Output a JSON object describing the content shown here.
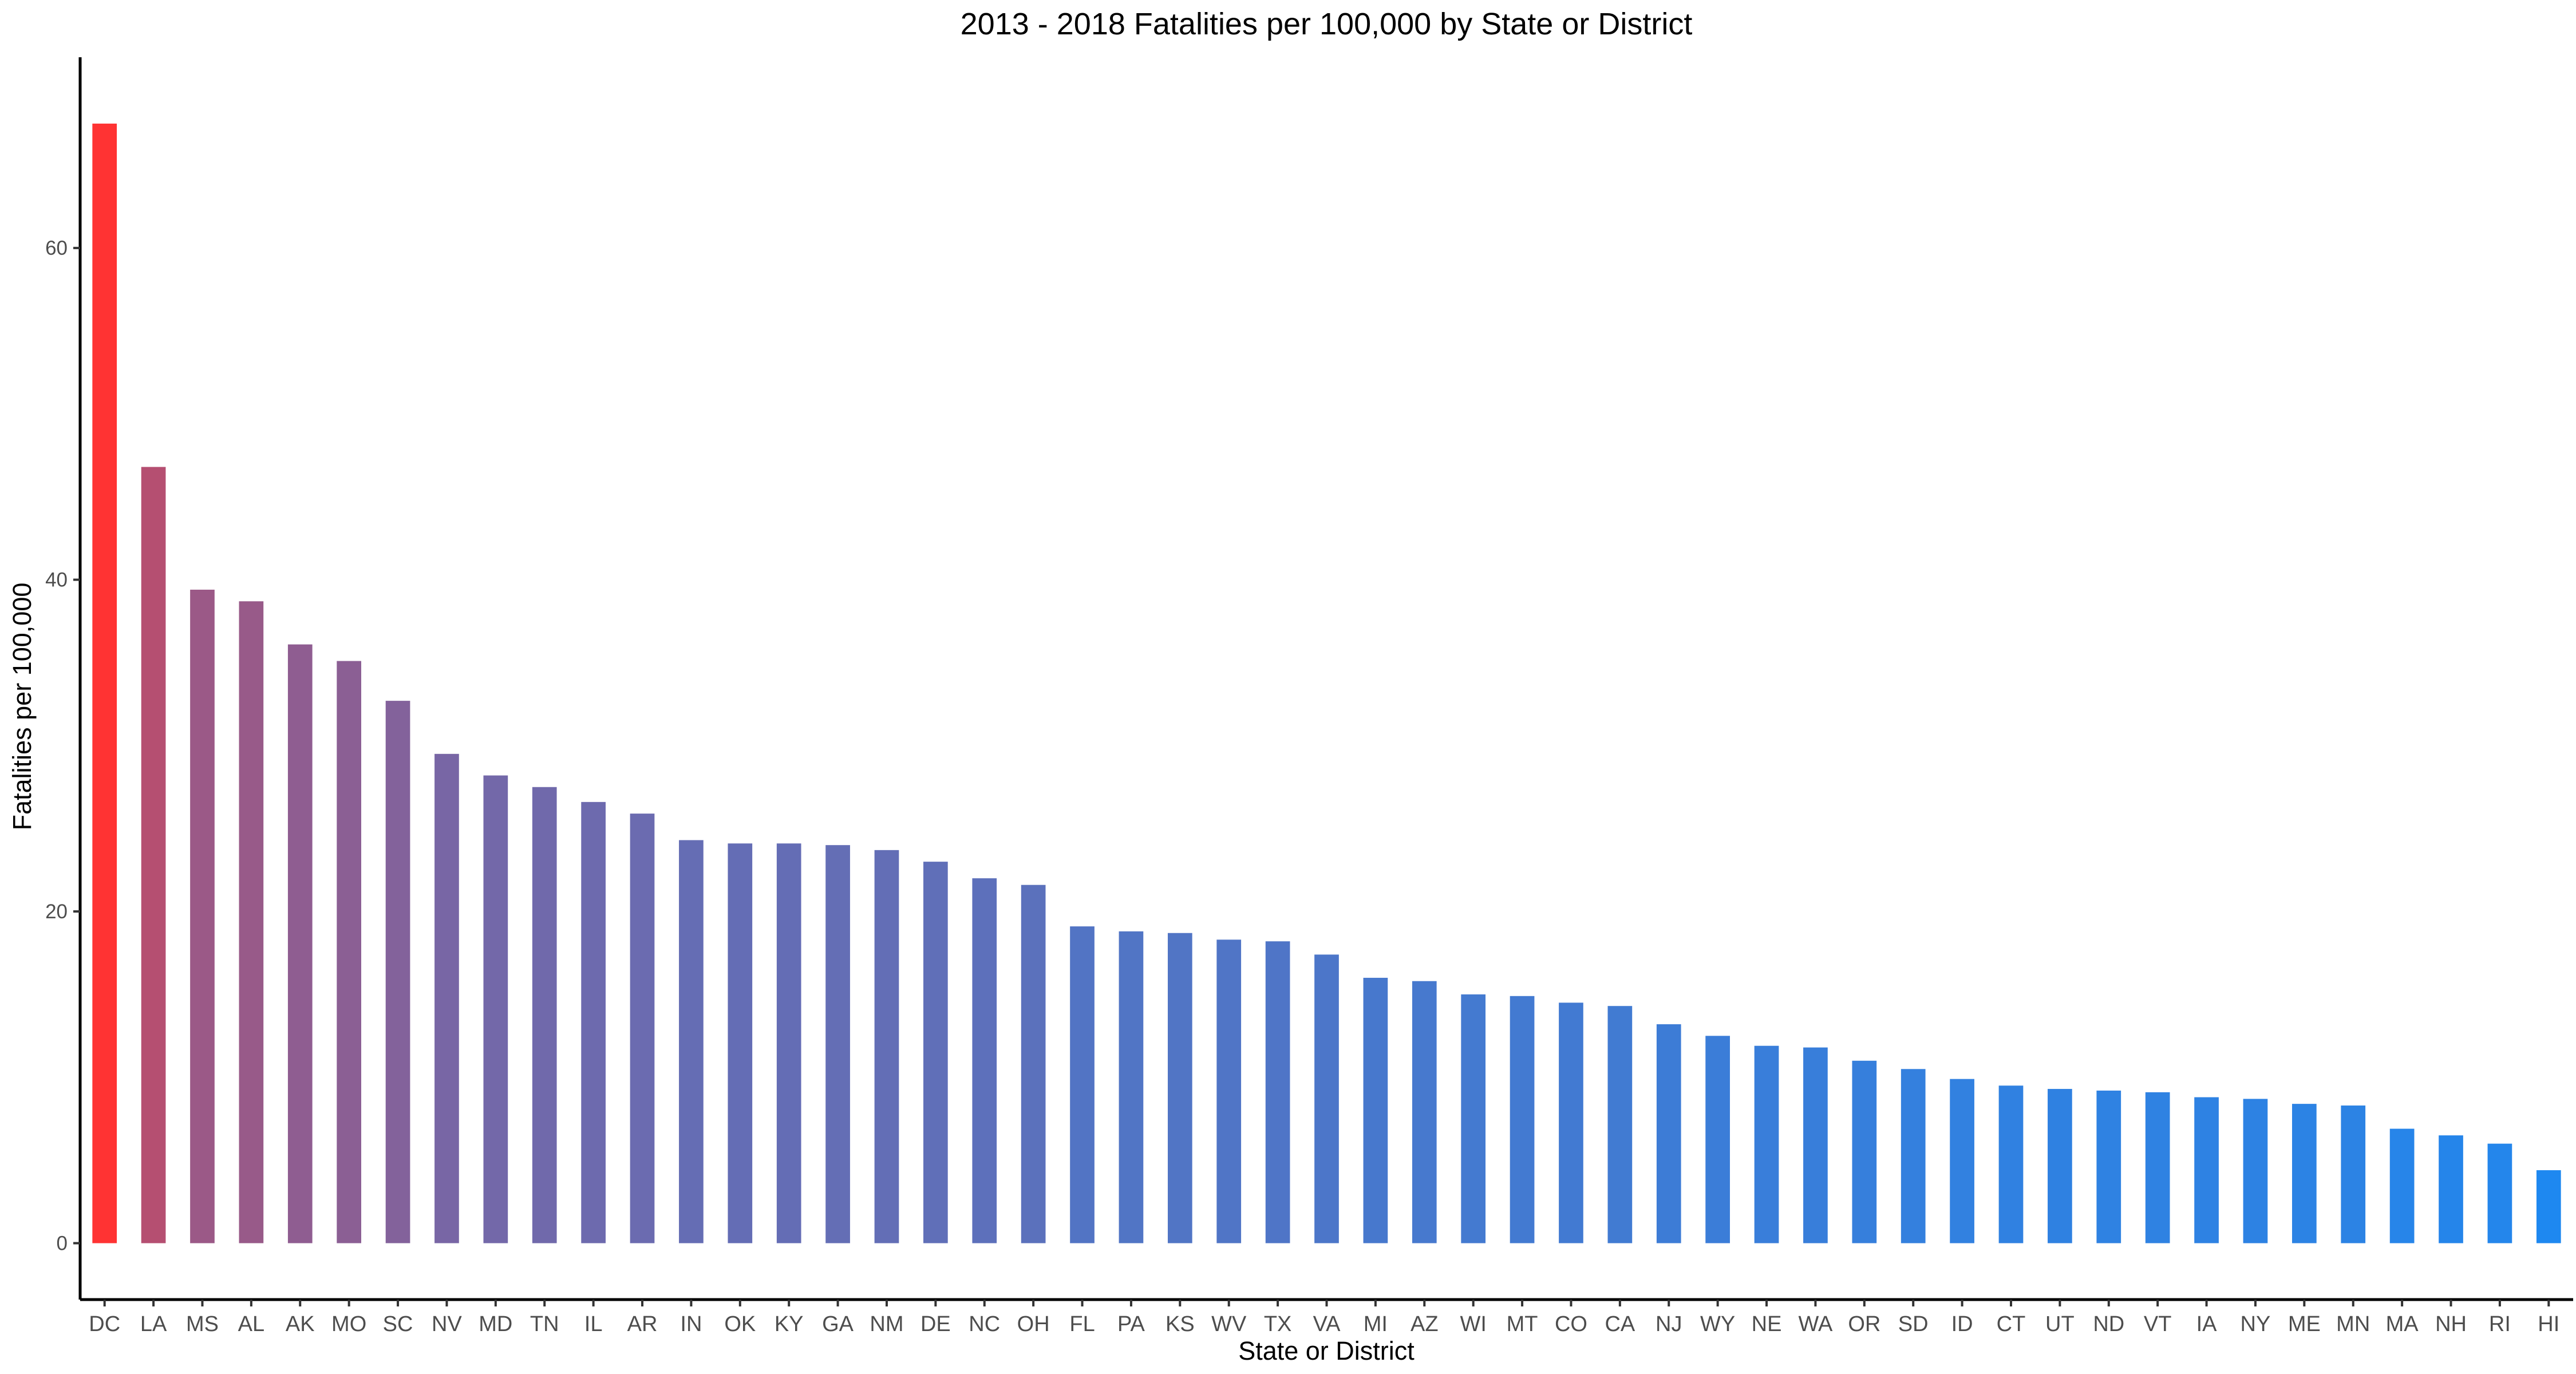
{
  "chart_data": {
    "type": "bar",
    "title": "2013 - 2018 Fatalities per 100,000 by State or District",
    "xlabel": "State or District",
    "ylabel": "Fatalities per 100,000",
    "ylim": [
      -3.4,
      71.5
    ],
    "yticks": [
      0,
      20,
      40,
      60
    ],
    "grid": false,
    "legend": "none",
    "colors": {
      "high": "#ff3333",
      "low": "#1e88f0"
    },
    "categories": [
      "DC",
      "LA",
      "MS",
      "AL",
      "AK",
      "MO",
      "SC",
      "NV",
      "MD",
      "TN",
      "IL",
      "AR",
      "IN",
      "OK",
      "KY",
      "GA",
      "NM",
      "DE",
      "NC",
      "OH",
      "FL",
      "PA",
      "KS",
      "WV",
      "TX",
      "VA",
      "MI",
      "AZ",
      "WI",
      "MT",
      "CO",
      "CA",
      "NJ",
      "WY",
      "NE",
      "WA",
      "OR",
      "SD",
      "ID",
      "CT",
      "UT",
      "ND",
      "VT",
      "IA",
      "NY",
      "ME",
      "MN",
      "MA",
      "NH",
      "RI",
      "HI"
    ],
    "values": [
      67.5,
      46.8,
      39.4,
      38.7,
      36.1,
      35.1,
      32.7,
      29.5,
      28.2,
      27.5,
      26.6,
      25.9,
      24.3,
      24.1,
      24.1,
      24.0,
      23.7,
      23.0,
      22.0,
      21.6,
      19.1,
      18.8,
      18.7,
      18.3,
      18.2,
      17.4,
      16.0,
      15.8,
      15.0,
      14.9,
      14.5,
      14.3,
      13.2,
      12.5,
      11.9,
      11.8,
      11.0,
      10.5,
      9.9,
      9.5,
      9.3,
      9.2,
      9.1,
      8.8,
      8.7,
      8.4,
      8.3,
      6.9,
      6.5,
      6.0,
      4.4
    ]
  }
}
